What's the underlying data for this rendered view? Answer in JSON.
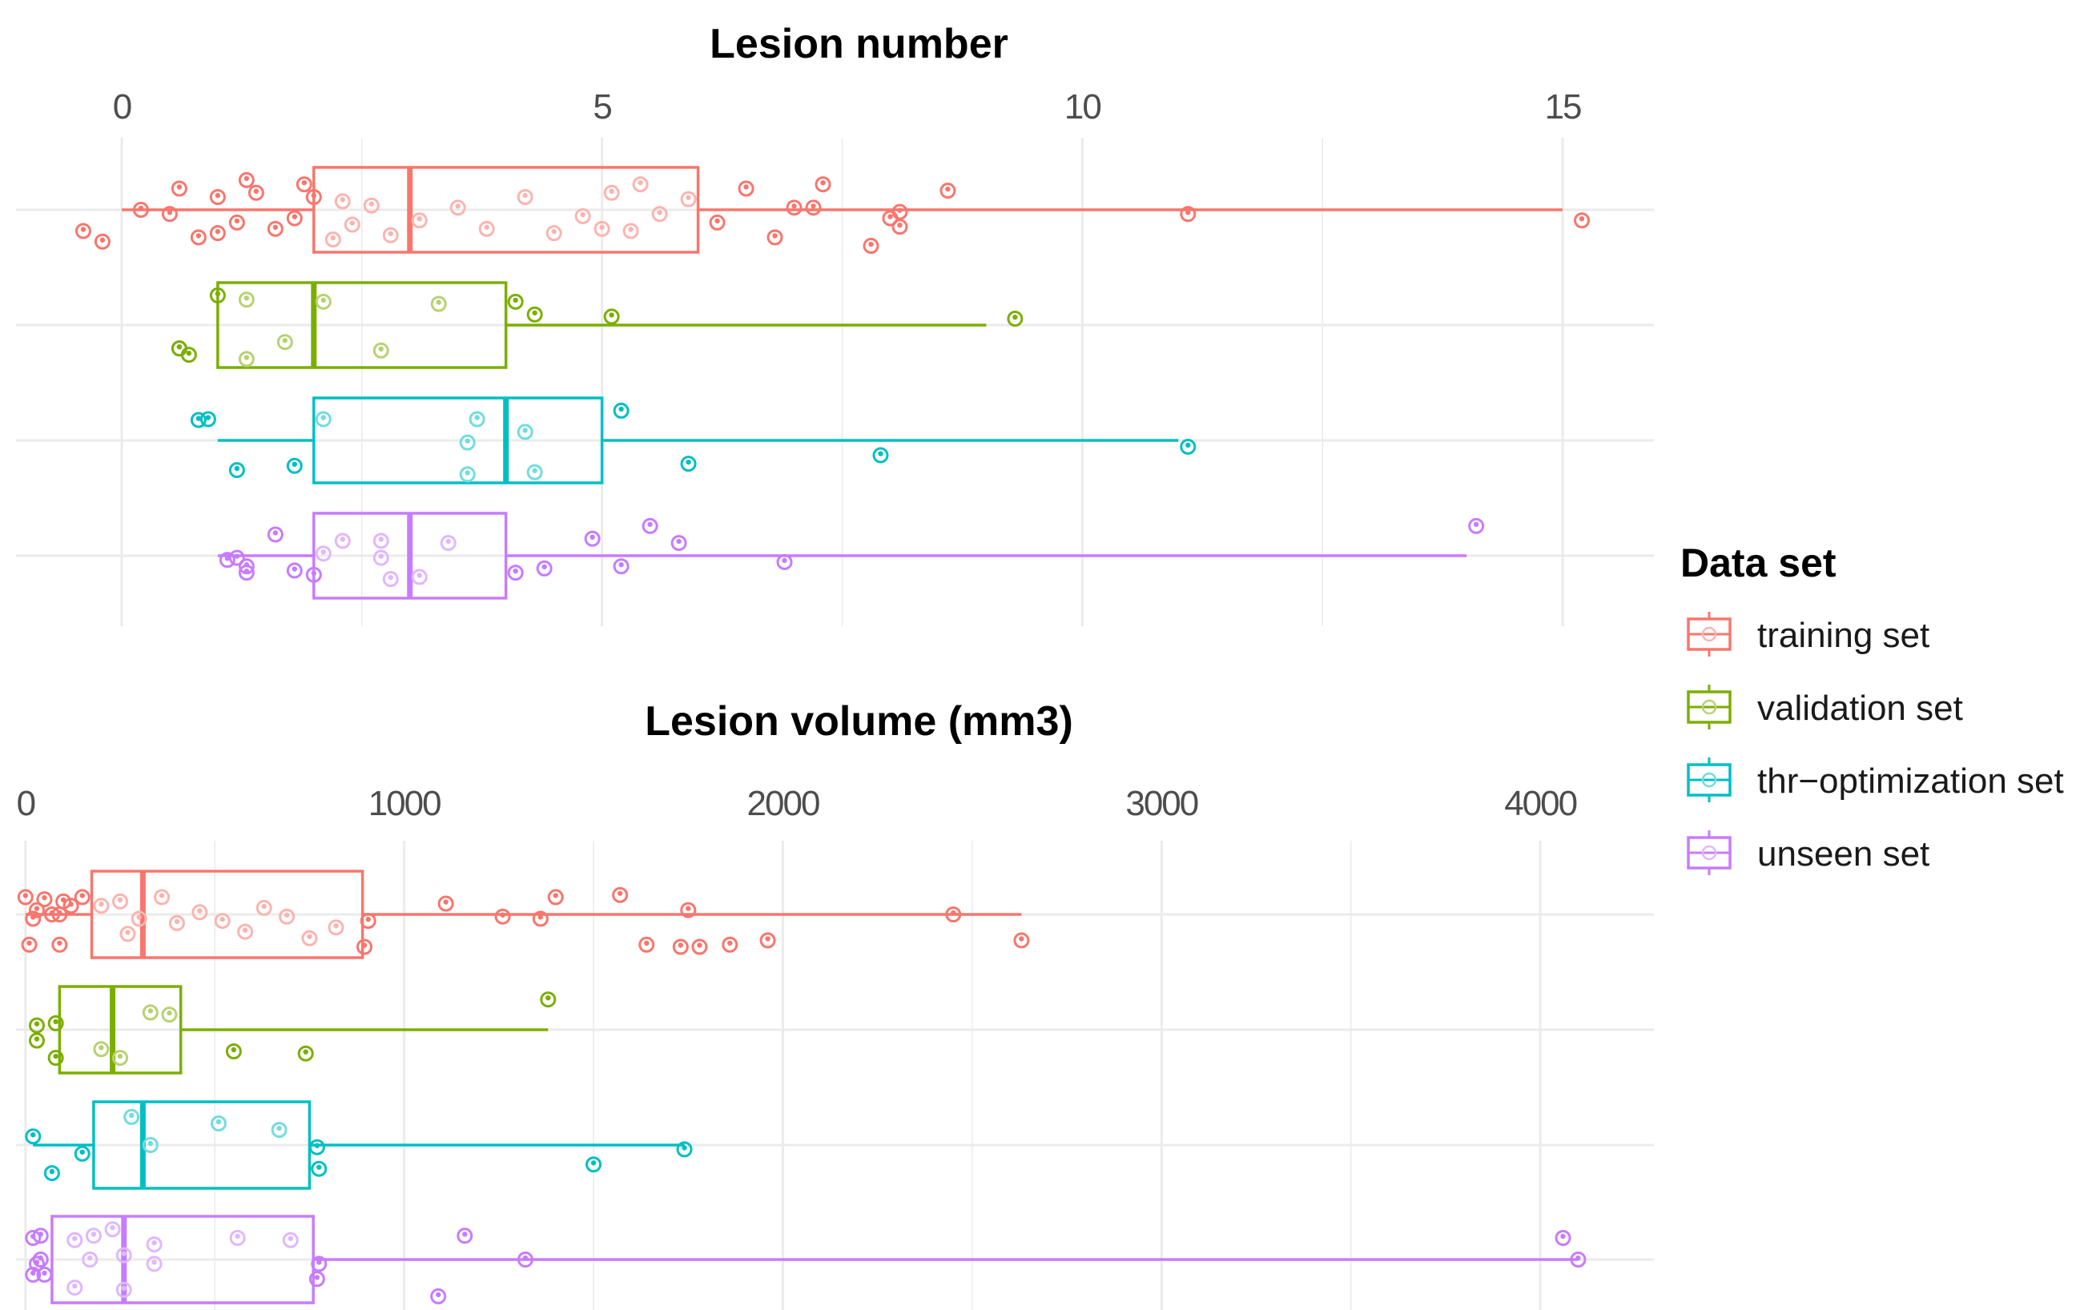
{
  "legend": {
    "title": "Data set",
    "position": "right",
    "items": [
      {
        "label": "training set",
        "color": "#F8766D"
      },
      {
        "label": "validation set",
        "color": "#7CAE00"
      },
      {
        "label": "thr−optimization set",
        "color": "#00BFC4"
      },
      {
        "label": "unseen set",
        "color": "#C77CFF"
      }
    ]
  },
  "chart_data": [
    {
      "type": "boxplot",
      "orientation": "horizontal",
      "title": "Lesion number",
      "x_axis_position": "top",
      "xlim": [
        -1.1,
        15.95
      ],
      "x_ticks": [
        0,
        5,
        10,
        15
      ],
      "grid": true,
      "series": [
        {
          "name": "training set",
          "color": "#F8766D",
          "whisker_low": 0,
          "q1": 2,
          "median": 3,
          "q3": 6,
          "whisker_high": 15,
          "points": [
            {
              "x": 0.6,
              "dy": -0.5
            },
            {
              "x": 1.3,
              "dy": -0.7
            },
            {
              "x": 1.9,
              "dy": -0.6
            },
            {
              "x": 2.3,
              "dy": -0.2
            },
            {
              "x": 1.0,
              "dy": -0.3
            },
            {
              "x": 1.4,
              "dy": -0.4
            },
            {
              "x": 0.5,
              "dy": 0.1
            },
            {
              "x": 1.2,
              "dy": 0.3
            },
            {
              "x": 1.0,
              "dy": 0.55
            },
            {
              "x": 1.6,
              "dy": 0.45
            },
            {
              "x": 0.8,
              "dy": 0.65
            },
            {
              "x": 1.8,
              "dy": 0.2
            },
            {
              "x": 0.2,
              "dy": 0.0
            },
            {
              "x": -0.4,
              "dy": 0.5
            },
            {
              "x": -0.2,
              "dy": 0.75
            },
            {
              "x": 2.0,
              "dy": -0.3
            },
            {
              "x": 2.2,
              "dy": 0.7
            },
            {
              "x": 2.6,
              "dy": -0.1
            },
            {
              "x": 2.4,
              "dy": 0.35
            },
            {
              "x": 2.8,
              "dy": 0.6
            },
            {
              "x": 3.1,
              "dy": 0.25
            },
            {
              "x": 3.5,
              "dy": -0.05
            },
            {
              "x": 3.8,
              "dy": 0.45
            },
            {
              "x": 4.2,
              "dy": -0.3
            },
            {
              "x": 4.5,
              "dy": 0.55
            },
            {
              "x": 4.8,
              "dy": 0.15
            },
            {
              "x": 5.1,
              "dy": -0.4
            },
            {
              "x": 5.3,
              "dy": 0.5
            },
            {
              "x": 5.6,
              "dy": 0.1
            },
            {
              "x": 5.9,
              "dy": -0.25
            },
            {
              "x": 6.2,
              "dy": 0.3
            },
            {
              "x": 5.4,
              "dy": -0.6
            },
            {
              "x": 5.0,
              "dy": 0.45
            },
            {
              "x": 6.5,
              "dy": -0.5
            },
            {
              "x": 6.8,
              "dy": 0.65
            },
            {
              "x": 7.0,
              "dy": -0.05
            },
            {
              "x": 7.3,
              "dy": -0.6
            },
            {
              "x": 7.2,
              "dy": -0.05
            },
            {
              "x": 8.0,
              "dy": 0.2
            },
            {
              "x": 8.1,
              "dy": 0.05
            },
            {
              "x": 8.1,
              "dy": 0.4
            },
            {
              "x": 7.8,
              "dy": 0.85
            },
            {
              "x": 8.6,
              "dy": -0.45
            },
            {
              "x": 11.1,
              "dy": 0.1
            },
            {
              "x": 15.2,
              "dy": 0.25
            }
          ]
        },
        {
          "name": "validation set",
          "color": "#7CAE00",
          "whisker_low": 1,
          "q1": 1,
          "median": 2,
          "q3": 4,
          "whisker_high": 9,
          "points": [
            {
              "x": 1.3,
              "dy": -0.6
            },
            {
              "x": 1.0,
              "dy": -0.7
            },
            {
              "x": 2.1,
              "dy": -0.55
            },
            {
              "x": 3.3,
              "dy": -0.5
            },
            {
              "x": 4.1,
              "dy": -0.55
            },
            {
              "x": 4.3,
              "dy": -0.25
            },
            {
              "x": 5.1,
              "dy": -0.2
            },
            {
              "x": 9.3,
              "dy": -0.15
            },
            {
              "x": 1.7,
              "dy": 0.4
            },
            {
              "x": 0.6,
              "dy": 0.55
            },
            {
              "x": 0.7,
              "dy": 0.7
            },
            {
              "x": 1.3,
              "dy": 0.8
            },
            {
              "x": 2.7,
              "dy": 0.6
            },
            {
              "x": 0.6,
              "dy": 0.55
            }
          ]
        },
        {
          "name": "thr−optimization set",
          "color": "#00BFC4",
          "whisker_low": 1,
          "q1": 2,
          "median": 4,
          "q3": 5,
          "whisker_high": 11,
          "points": [
            {
              "x": 0.9,
              "dy": -0.5
            },
            {
              "x": 0.8,
              "dy": -0.48
            },
            {
              "x": 2.1,
              "dy": -0.5
            },
            {
              "x": 3.7,
              "dy": -0.5
            },
            {
              "x": 4.2,
              "dy": -0.2
            },
            {
              "x": 5.2,
              "dy": -0.7
            },
            {
              "x": 3.6,
              "dy": 0.05
            },
            {
              "x": 1.2,
              "dy": 0.7
            },
            {
              "x": 1.8,
              "dy": 0.6
            },
            {
              "x": 3.6,
              "dy": 0.8
            },
            {
              "x": 4.3,
              "dy": 0.75
            },
            {
              "x": 5.9,
              "dy": 0.55
            },
            {
              "x": 7.9,
              "dy": 0.35
            },
            {
              "x": 11.1,
              "dy": 0.15
            }
          ]
        },
        {
          "name": "unseen set",
          "color": "#C77CFF",
          "whisker_low": 1,
          "q1": 2,
          "median": 3,
          "q3": 4,
          "whisker_high": 14,
          "points": [
            {
              "x": 1.6,
              "dy": -0.5
            },
            {
              "x": 2.3,
              "dy": -0.35
            },
            {
              "x": 2.7,
              "dy": -0.35
            },
            {
              "x": 3.4,
              "dy": -0.3
            },
            {
              "x": 4.9,
              "dy": -0.4
            },
            {
              "x": 5.5,
              "dy": -0.7
            },
            {
              "x": 5.8,
              "dy": -0.3
            },
            {
              "x": 14.1,
              "dy": -0.7
            },
            {
              "x": 2.1,
              "dy": -0.05
            },
            {
              "x": 2.7,
              "dy": 0.05
            },
            {
              "x": 1.1,
              "dy": 0.1
            },
            {
              "x": 1.2,
              "dy": 0.05
            },
            {
              "x": 1.3,
              "dy": 0.25
            },
            {
              "x": 1.3,
              "dy": 0.4
            },
            {
              "x": 1.8,
              "dy": 0.35
            },
            {
              "x": 2.0,
              "dy": 0.45
            },
            {
              "x": 2.8,
              "dy": 0.55
            },
            {
              "x": 3.1,
              "dy": 0.5
            },
            {
              "x": 4.4,
              "dy": 0.3
            },
            {
              "x": 4.1,
              "dy": 0.4
            },
            {
              "x": 5.2,
              "dy": 0.25
            },
            {
              "x": 6.9,
              "dy": 0.15
            }
          ]
        }
      ]
    },
    {
      "type": "boxplot",
      "orientation": "horizontal",
      "title": "Lesion volume (mm3)",
      "x_axis_position": "top",
      "xlim": [
        -25,
        4300
      ],
      "x_ticks": [
        0,
        1000,
        2000,
        3000,
        4000
      ],
      "grid": true,
      "series": [
        {
          "name": "training set",
          "color": "#F8766D",
          "whisker_low": 0,
          "q1": 175,
          "median": 310,
          "q3": 890,
          "whisker_high": 2630,
          "points": [
            {
              "x": 0,
              "dy": -0.4
            },
            {
              "x": 50,
              "dy": -0.35
            },
            {
              "x": 100,
              "dy": -0.3
            },
            {
              "x": 150,
              "dy": -0.4
            },
            {
              "x": 200,
              "dy": -0.2
            },
            {
              "x": 30,
              "dy": -0.1
            },
            {
              "x": 90,
              "dy": 0.0
            },
            {
              "x": 120,
              "dy": -0.2
            },
            {
              "x": 10,
              "dy": 0.7
            },
            {
              "x": 90,
              "dy": 0.7
            },
            {
              "x": 20,
              "dy": 0.1
            },
            {
              "x": 70,
              "dy": 0.0
            },
            {
              "x": 250,
              "dy": -0.3
            },
            {
              "x": 300,
              "dy": 0.1
            },
            {
              "x": 360,
              "dy": -0.4
            },
            {
              "x": 400,
              "dy": 0.2
            },
            {
              "x": 460,
              "dy": -0.05
            },
            {
              "x": 520,
              "dy": 0.15
            },
            {
              "x": 580,
              "dy": 0.4
            },
            {
              "x": 630,
              "dy": -0.15
            },
            {
              "x": 690,
              "dy": 0.05
            },
            {
              "x": 750,
              "dy": 0.55
            },
            {
              "x": 820,
              "dy": 0.3
            },
            {
              "x": 270,
              "dy": 0.45
            },
            {
              "x": 905,
              "dy": 0.15
            },
            {
              "x": 895,
              "dy": 0.75
            },
            {
              "x": 1110,
              "dy": -0.25
            },
            {
              "x": 1400,
              "dy": -0.4
            },
            {
              "x": 1570,
              "dy": -0.45
            },
            {
              "x": 1260,
              "dy": 0.05
            },
            {
              "x": 1360,
              "dy": 0.1
            },
            {
              "x": 1750,
              "dy": -0.1
            },
            {
              "x": 1640,
              "dy": 0.7
            },
            {
              "x": 1730,
              "dy": 0.75
            },
            {
              "x": 1780,
              "dy": 0.75
            },
            {
              "x": 1860,
              "dy": 0.7
            },
            {
              "x": 1960,
              "dy": 0.6
            },
            {
              "x": 2450,
              "dy": 0.0
            },
            {
              "x": 2630,
              "dy": 0.6
            }
          ]
        },
        {
          "name": "validation set",
          "color": "#7CAE00",
          "whisker_low": 90,
          "q1": 90,
          "median": 230,
          "q3": 410,
          "whisker_high": 1380,
          "points": [
            {
              "x": 30,
              "dy": -0.1
            },
            {
              "x": 80,
              "dy": -0.15
            },
            {
              "x": 30,
              "dy": 0.25
            },
            {
              "x": 80,
              "dy": 0.65
            },
            {
              "x": 330,
              "dy": -0.4
            },
            {
              "x": 380,
              "dy": -0.35
            },
            {
              "x": 200,
              "dy": 0.45
            },
            {
              "x": 250,
              "dy": 0.65
            },
            {
              "x": 550,
              "dy": 0.5
            },
            {
              "x": 740,
              "dy": 0.55
            },
            {
              "x": 1380,
              "dy": -0.7
            }
          ]
        },
        {
          "name": "thr−optimization set",
          "color": "#00BFC4",
          "whisker_low": 20,
          "q1": 180,
          "median": 310,
          "q3": 750,
          "whisker_high": 1740,
          "points": [
            {
              "x": 20,
              "dy": -0.2
            },
            {
              "x": 150,
              "dy": 0.2
            },
            {
              "x": 70,
              "dy": 0.65
            },
            {
              "x": 280,
              "dy": -0.65
            },
            {
              "x": 330,
              "dy": 0.0
            },
            {
              "x": 510,
              "dy": -0.5
            },
            {
              "x": 670,
              "dy": -0.35
            },
            {
              "x": 770,
              "dy": 0.05
            },
            {
              "x": 775,
              "dy": 0.55
            },
            {
              "x": 1500,
              "dy": 0.45
            },
            {
              "x": 1740,
              "dy": 0.1
            }
          ]
        },
        {
          "name": "unseen set",
          "color": "#C77CFF",
          "whisker_low": 70,
          "q1": 70,
          "median": 260,
          "q3": 760,
          "whisker_high": 4100,
          "points": [
            {
              "x": 20,
              "dy": -0.5
            },
            {
              "x": 40,
              "dy": -0.55
            },
            {
              "x": 40,
              "dy": 0.0
            },
            {
              "x": 30,
              "dy": 0.1
            },
            {
              "x": 20,
              "dy": 0.35
            },
            {
              "x": 50,
              "dy": 0.35
            },
            {
              "x": 130,
              "dy": -0.45
            },
            {
              "x": 180,
              "dy": -0.55
            },
            {
              "x": 230,
              "dy": -0.7
            },
            {
              "x": 170,
              "dy": 0.0
            },
            {
              "x": 260,
              "dy": -0.1
            },
            {
              "x": 340,
              "dy": -0.35
            },
            {
              "x": 340,
              "dy": 0.1
            },
            {
              "x": 130,
              "dy": 0.65
            },
            {
              "x": 260,
              "dy": 0.7
            },
            {
              "x": 560,
              "dy": -0.5
            },
            {
              "x": 700,
              "dy": -0.45
            },
            {
              "x": 770,
              "dy": 0.45
            },
            {
              "x": 775,
              "dy": 0.1
            },
            {
              "x": 1160,
              "dy": -0.55
            },
            {
              "x": 1320,
              "dy": 0.0
            },
            {
              "x": 1090,
              "dy": 0.85
            },
            {
              "x": 4060,
              "dy": -0.5
            },
            {
              "x": 4100,
              "dy": 0.0
            }
          ]
        }
      ]
    }
  ]
}
